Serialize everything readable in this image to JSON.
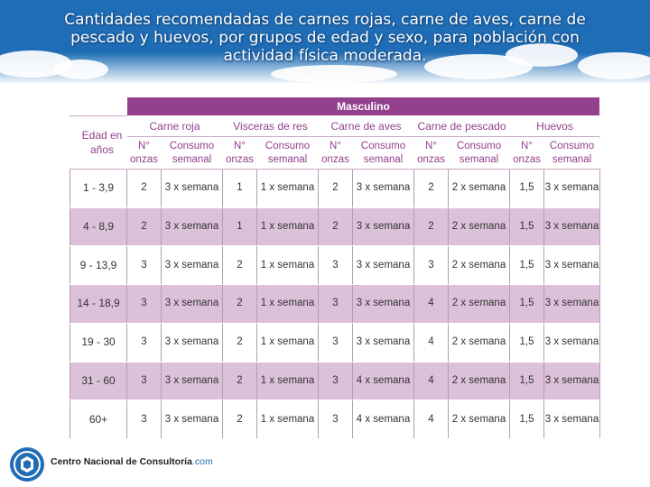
{
  "title": "Cantidades recomendadas de carnes rojas, carne de aves, carne de pescado y huevos, por grupos de edad y sexo, para población con actividad física moderada.",
  "table": {
    "group_label": "Masculino",
    "age_header": "Edad en años",
    "categories": [
      "Carne roja",
      "Visceras de res",
      "Carne de aves",
      "Carne de pescado",
      "Huevos"
    ],
    "sub_headers": {
      "onzas": "N° onzas",
      "consumo": "Consumo semanal"
    },
    "rows": [
      {
        "age": "1 - 3,9",
        "values": [
          "2",
          "3 x semana",
          "1",
          "1 x semana",
          "2",
          "3 x semana",
          "2",
          "2 x semana",
          "1,5",
          "3 x semana"
        ]
      },
      {
        "age": "4 - 8,9",
        "values": [
          "2",
          "3 x semana",
          "1",
          "1 x semana",
          "2",
          "3 x semana",
          "2",
          "2 x semana",
          "1,5",
          "3 x semana"
        ]
      },
      {
        "age": "9 - 13,9",
        "values": [
          "3",
          "3 x semana",
          "2",
          "1 x semana",
          "3",
          "3 x semana",
          "3",
          "2 x semana",
          "1,5",
          "3 x semana"
        ]
      },
      {
        "age": "14 - 18,9",
        "values": [
          "3",
          "3 x semana",
          "2",
          "1 x semana",
          "3",
          "3 x semana",
          "4",
          "2 x semana",
          "1,5",
          "3 x semana"
        ]
      },
      {
        "age": "19 - 30",
        "values": [
          "3",
          "3 x semana",
          "2",
          "1 x semana",
          "3",
          "3 x semana",
          "4",
          "2 x semana",
          "1,5",
          "3 x semana"
        ]
      },
      {
        "age": "31 - 60",
        "values": [
          "3",
          "3 x semana",
          "2",
          "1 x semana",
          "3",
          "4 x semana",
          "4",
          "2 x semana",
          "1,5",
          "3 x semana"
        ]
      },
      {
        "age": "60+",
        "values": [
          "3",
          "3 x semana",
          "2",
          "1 x semana",
          "3",
          "4 x semana",
          "4",
          "2 x semana",
          "1,5",
          "3 x semana"
        ]
      }
    ]
  },
  "footer": {
    "org_name": "Centro Nacional de Consultoría",
    "org_domain": ".com"
  },
  "colors": {
    "banner": "#1f6db6",
    "accent": "#93408d",
    "row_shade": "#dcc1da"
  },
  "icons": {
    "logo": "cnc-logo-icon"
  }
}
